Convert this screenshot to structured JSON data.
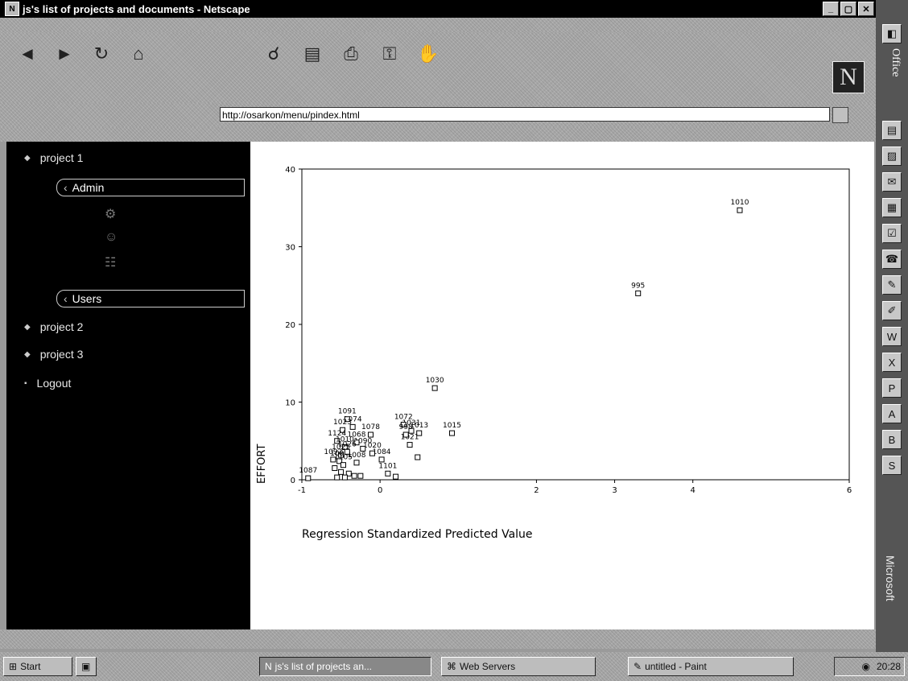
{
  "window": {
    "title": "js's list of projects and documents - Netscape",
    "controls": [
      "_",
      "▢",
      "✕"
    ]
  },
  "location": {
    "label": "",
    "url": "http://osarkon/menu/pindex.html"
  },
  "sidebar": {
    "items": [
      {
        "label": "project 1"
      },
      {
        "label": "Admin"
      },
      {
        "label": "Users"
      },
      {
        "label": "project 2"
      },
      {
        "label": "project 3"
      },
      {
        "label": "Logout"
      }
    ]
  },
  "office_bar": {
    "title": "Office",
    "vendor": "Microsoft"
  },
  "taskbar": {
    "start": "Start",
    "tasks": [
      {
        "label": "js's list of projects an..."
      },
      {
        "label": "Web Servers"
      },
      {
        "label": "untitled - Paint"
      }
    ],
    "clock": "20:28"
  },
  "chart_data": {
    "type": "scatter",
    "title": "",
    "xlabel": "Regression Standardized Predicted Value",
    "ylabel": "EFFORT",
    "xlim": [
      -1,
      6
    ],
    "ylim": [
      0,
      40
    ],
    "xticks": [
      -1,
      0,
      2,
      3,
      4,
      6
    ],
    "xticklabels": [
      "-1",
      "0",
      "2",
      "3",
      "4",
      "6"
    ],
    "yticks": [
      0,
      10,
      20,
      30,
      40
    ],
    "yticklabels": [
      "0",
      "10",
      "20",
      "30",
      "40"
    ],
    "grid": false,
    "series": [
      {
        "points": [
          {
            "x": 4.6,
            "y": 34.7,
            "label": "1010"
          },
          {
            "x": 3.3,
            "y": 24.0,
            "label": "995"
          },
          {
            "x": 0.7,
            "y": 11.8,
            "label": "1030"
          },
          {
            "x": 0.92,
            "y": 6.0,
            "label": "1015"
          },
          {
            "x": 0.5,
            "y": 6.0,
            "label": "1013"
          },
          {
            "x": 0.4,
            "y": 6.3,
            "label": "1031"
          },
          {
            "x": 0.38,
            "y": 4.5,
            "label": "1021"
          },
          {
            "x": 0.48,
            "y": 2.9,
            "label": ""
          },
          {
            "x": 0.3,
            "y": 7.1,
            "label": "1072"
          },
          {
            "x": 0.33,
            "y": 5.8,
            "label": "998"
          },
          {
            "x": 0.1,
            "y": 0.8,
            "label": "1101"
          },
          {
            "x": 0.02,
            "y": 2.6,
            "label": "1084"
          },
          {
            "x": 0.2,
            "y": 0.4,
            "label": ""
          },
          {
            "x": -0.1,
            "y": 3.4,
            "label": "1020"
          },
          {
            "x": -0.12,
            "y": 5.8,
            "label": "1078"
          },
          {
            "x": -0.22,
            "y": 4.0,
            "label": "1090"
          },
          {
            "x": -0.3,
            "y": 4.8,
            "label": "1068"
          },
          {
            "x": -0.35,
            "y": 6.8,
            "label": "1074"
          },
          {
            "x": -0.42,
            "y": 7.8,
            "label": "1091"
          },
          {
            "x": -0.48,
            "y": 6.4,
            "label": "1023"
          },
          {
            "x": -0.55,
            "y": 5.0,
            "label": "1124"
          },
          {
            "x": -0.45,
            "y": 4.2,
            "label": "1010"
          },
          {
            "x": -0.5,
            "y": 3.2,
            "label": "1025"
          },
          {
            "x": -0.3,
            "y": 2.2,
            "label": "1008"
          },
          {
            "x": -0.52,
            "y": 2.4,
            "label": "1094"
          },
          {
            "x": -0.47,
            "y": 1.9,
            "label": "1105"
          },
          {
            "x": -0.42,
            "y": 3.6,
            "label": "1026"
          },
          {
            "x": -0.6,
            "y": 2.6,
            "label": "1092"
          },
          {
            "x": -0.58,
            "y": 1.5,
            "label": ""
          },
          {
            "x": -0.5,
            "y": 1.0,
            "label": ""
          },
          {
            "x": -0.4,
            "y": 0.8,
            "label": ""
          },
          {
            "x": -0.33,
            "y": 0.5,
            "label": ""
          },
          {
            "x": -0.25,
            "y": 0.5,
            "label": ""
          },
          {
            "x": -0.55,
            "y": 0.3,
            "label": ""
          },
          {
            "x": -0.45,
            "y": 0.3,
            "label": ""
          },
          {
            "x": -0.92,
            "y": 0.2,
            "label": "1087"
          }
        ]
      }
    ]
  }
}
